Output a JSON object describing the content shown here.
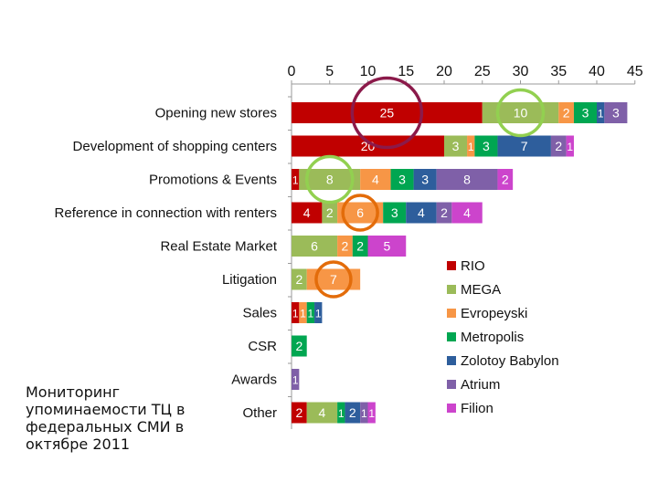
{
  "caption": "Мониторинг упоминаемости ТЦ в федеральных СМИ в октябре 2011",
  "chart_data": {
    "type": "bar",
    "orientation": "horizontal",
    "stacked": true,
    "xlim": [
      0,
      45
    ],
    "x_ticks": [
      "0",
      "5",
      "10",
      "15",
      "20",
      "25",
      "30",
      "35",
      "40",
      "45"
    ],
    "x_axis_position": "top",
    "grid": false,
    "legend_position": "bottom-right",
    "categories": [
      "Opening new stores",
      "Development of shopping centers",
      "Promotions & Events",
      "Reference in connection with renters",
      "Real Estate Market",
      "Litigation",
      "Sales",
      "CSR",
      "Awards",
      "Other"
    ],
    "series": [
      {
        "name": "RIO",
        "color": "#C00000",
        "values": [
          25,
          20,
          1,
          4,
          0,
          0,
          1,
          0,
          0,
          2
        ]
      },
      {
        "name": "MEGA",
        "color": "#9BBB59",
        "values": [
          10,
          3,
          8,
          2,
          6,
          2,
          0,
          0,
          0,
          4
        ]
      },
      {
        "name": "Evropeyski",
        "color": "#F79646",
        "values": [
          2,
          1,
          4,
          6,
          2,
          7,
          1,
          0,
          0,
          0
        ]
      },
      {
        "name": "Metropolis",
        "color": "#00A651",
        "values": [
          3,
          3,
          3,
          3,
          2,
          0,
          1,
          2,
          0,
          1
        ]
      },
      {
        "name": "Zolotoy Babylon",
        "color": "#2E5E9C",
        "values": [
          1,
          7,
          3,
          4,
          0,
          0,
          1,
          0,
          0,
          2
        ]
      },
      {
        "name": "Atrium",
        "color": "#7F60A8",
        "values": [
          3,
          2,
          8,
          2,
          0,
          0,
          0,
          0,
          1,
          1
        ]
      },
      {
        "name": "Filion",
        "color": "#CC44CC",
        "values": [
          0,
          1,
          2,
          4,
          5,
          0,
          0,
          0,
          0,
          1
        ]
      }
    ],
    "data_label_color": "#ffffff",
    "highlight_circles": [
      {
        "category": "Opening new stores",
        "series": "RIO",
        "color": "#8B1A4A"
      },
      {
        "category": "Opening new stores",
        "series": "MEGA",
        "color": "#92D050"
      },
      {
        "category": "Promotions & Events",
        "series": "MEGA",
        "color": "#92D050"
      },
      {
        "category": "Reference in connection with renters",
        "series": "Evropeyski",
        "color": "#E36C0A"
      },
      {
        "category": "Litigation",
        "series": "Evropeyski",
        "color": "#E36C0A"
      }
    ]
  }
}
